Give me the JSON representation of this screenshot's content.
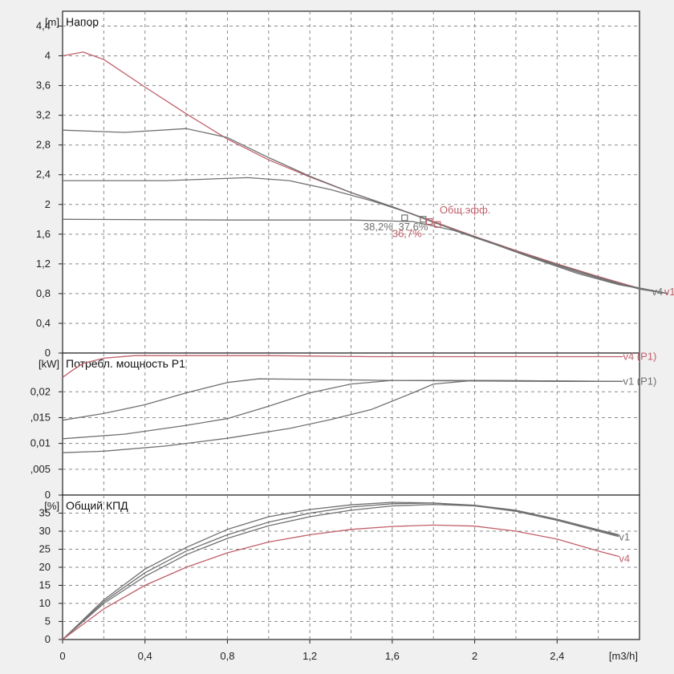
{
  "chart_data": [
    {
      "type": "line",
      "title": "Напор",
      "ylabel": "[m]",
      "xlim": [
        0,
        2.8
      ],
      "ylim": [
        0,
        4.6
      ],
      "y_ticks": [
        "0",
        "0,4",
        "0,8",
        "1,2",
        "1,6",
        "2",
        "2,4",
        "2,8",
        "3,2",
        "3,6",
        "4",
        "4,4"
      ],
      "grid": true,
      "series": [
        {
          "color": "#c0606a",
          "x": [
            0,
            0.1,
            0.2,
            0.4,
            0.6,
            0.8,
            1.0,
            1.2,
            1.4,
            1.6,
            1.8,
            2.0,
            2.2,
            2.4,
            2.6,
            2.8,
            2.94
          ],
          "y": [
            4.0,
            4.05,
            3.95,
            3.58,
            3.22,
            2.88,
            2.6,
            2.37,
            2.16,
            1.97,
            1.77,
            1.57,
            1.38,
            1.2,
            1.03,
            0.87,
            0.8
          ]
        },
        {
          "color": "#707070",
          "x": [
            0,
            0.3,
            0.6,
            0.8,
            1.0,
            1.2,
            1.4,
            1.6,
            1.8,
            2.0,
            2.2,
            2.4,
            2.6,
            2.8,
            2.94
          ],
          "y": [
            3.0,
            2.97,
            3.02,
            2.9,
            2.63,
            2.38,
            2.16,
            1.97,
            1.76,
            1.56,
            1.37,
            1.19,
            1.02,
            0.86,
            0.8
          ]
        },
        {
          "color": "#707070",
          "x": [
            0,
            0.5,
            0.9,
            1.1,
            1.3,
            1.5,
            1.7,
            1.9,
            2.1,
            2.3,
            2.5,
            2.7,
            2.94
          ],
          "y": [
            2.32,
            2.32,
            2.36,
            2.32,
            2.2,
            2.05,
            1.87,
            1.66,
            1.47,
            1.27,
            1.09,
            0.93,
            0.8
          ]
        },
        {
          "color": "#707070",
          "x": [
            0,
            0.8,
            1.4,
            1.7,
            1.9,
            2.1,
            2.3,
            2.5,
            2.7,
            2.94
          ],
          "y": [
            1.8,
            1.79,
            1.79,
            1.77,
            1.65,
            1.46,
            1.26,
            1.07,
            0.92,
            0.8
          ]
        }
      ],
      "markers": [
        {
          "x": 1.66,
          "y": 1.82,
          "color": "#707070"
        },
        {
          "x": 1.75,
          "y": 1.8,
          "color": "#707070"
        },
        {
          "x": 1.78,
          "y": 1.77,
          "color": "#c0606a"
        },
        {
          "x": 1.82,
          "y": 1.73,
          "color": "#c0606a"
        }
      ],
      "annotations": [
        {
          "text": "Общ.эфф.",
          "x": 1.83,
          "y": 1.88,
          "color": "#c0606a"
        },
        {
          "text": "38,2%",
          "x": 1.46,
          "y": 1.65,
          "color": "#707070"
        },
        {
          "text": "37,6%",
          "x": 1.63,
          "y": 1.65,
          "color": "#707070"
        },
        {
          "text": "36,7%",
          "x": 1.6,
          "y": 1.56,
          "color": "#c0606a"
        },
        {
          "text": "v4",
          "x": 2.86,
          "y": 0.78,
          "color": "#707070"
        },
        {
          "text": "v1",
          "x": 2.92,
          "y": 0.78,
          "color": "#c0606a"
        }
      ]
    },
    {
      "type": "line",
      "title": "Потребл. мощность P1",
      "ylabel": "[kW]",
      "xlim": [
        0,
        2.8
      ],
      "ylim": [
        0,
        0.0275
      ],
      "y_ticks": [
        "0",
        ",005",
        "0,01",
        ",015",
        "0,02"
      ],
      "grid": true,
      "series": [
        {
          "name": "v4 (P1)",
          "color": "#c0606a",
          "x": [
            0,
            0.05,
            0.1,
            0.2,
            0.35,
            0.5,
            1.0,
            1.5,
            2.0,
            2.5,
            2.72
          ],
          "y": [
            0.0228,
            0.0242,
            0.0255,
            0.0265,
            0.027,
            0.027,
            0.027,
            0.0268,
            0.0268,
            0.0268,
            0.0268
          ]
        },
        {
          "name": "v1 (P1)",
          "color": "#707070",
          "x": [
            0,
            0.2,
            0.4,
            0.6,
            0.8,
            0.95,
            1.2,
            1.6,
            2.0,
            2.4,
            2.72
          ],
          "y": [
            0.0145,
            0.0158,
            0.0175,
            0.0198,
            0.0218,
            0.0225,
            0.0224,
            0.0222,
            0.0221,
            0.022,
            0.022
          ]
        },
        {
          "color": "#707070",
          "x": [
            0,
            0.3,
            0.6,
            0.8,
            1.0,
            1.2,
            1.4,
            1.6,
            2.0,
            2.4,
            2.72
          ],
          "y": [
            0.0109,
            0.0118,
            0.0135,
            0.0148,
            0.0172,
            0.0198,
            0.0215,
            0.0222,
            0.0222,
            0.0221,
            0.022
          ]
        },
        {
          "color": "#707070",
          "x": [
            0,
            0.2,
            0.5,
            0.8,
            1.1,
            1.3,
            1.5,
            1.7,
            1.8,
            2.0,
            2.4,
            2.72
          ],
          "y": [
            0.0082,
            0.0085,
            0.0095,
            0.011,
            0.0129,
            0.0146,
            0.0166,
            0.0198,
            0.0215,
            0.0222,
            0.0221,
            0.022
          ]
        }
      ],
      "annotations": [
        {
          "text": "v4 (P1)",
          "x": 2.72,
          "y": 0.0262,
          "color": "#c0606a"
        },
        {
          "text": "v1 (P1)",
          "x": 2.72,
          "y": 0.0214,
          "color": "#707070"
        }
      ]
    },
    {
      "type": "line",
      "title": "Общий КПД",
      "ylabel": "[%]",
      "xlabel": "[m3/h]",
      "xlim": [
        0,
        2.8
      ],
      "ylim": [
        0,
        40
      ],
      "y_ticks": [
        "0",
        "5",
        "10",
        "15",
        "20",
        "25",
        "30",
        "35"
      ],
      "x_ticks": [
        "0",
        "0,4",
        "0,8",
        "1,2",
        "1,6",
        "2",
        "2,4"
      ],
      "grid": true,
      "series": [
        {
          "name": "v1",
          "color": "#707070",
          "x": [
            0,
            0.2,
            0.4,
            0.6,
            0.8,
            1.0,
            1.2,
            1.4,
            1.6,
            1.8,
            2.0,
            2.2,
            2.4,
            2.6,
            2.7
          ],
          "y": [
            0,
            11,
            19.5,
            25.5,
            30.5,
            34,
            36,
            37.3,
            38,
            37.8,
            37,
            35.5,
            33,
            30,
            28.5
          ]
        },
        {
          "color": "#707070",
          "x": [
            0,
            0.2,
            0.4,
            0.6,
            0.8,
            1.0,
            1.2,
            1.4,
            1.6,
            1.8,
            2.0,
            2.2,
            2.4,
            2.6,
            2.7
          ],
          "y": [
            0,
            10.5,
            18.5,
            24.5,
            29,
            32.5,
            35,
            36.7,
            37.6,
            37.8,
            37.2,
            35.8,
            33.3,
            30.4,
            29
          ]
        },
        {
          "color": "#707070",
          "x": [
            0,
            0.2,
            0.4,
            0.6,
            0.8,
            1.0,
            1.2,
            1.4,
            1.6,
            1.8,
            2.0,
            2.2,
            2.4,
            2.6,
            2.7
          ],
          "y": [
            0,
            10,
            17.5,
            23.5,
            28,
            31.5,
            34,
            35.8,
            37,
            37.4,
            37,
            35.6,
            33.2,
            30.2,
            28.8
          ]
        },
        {
          "name": "v4",
          "color": "#c0606a",
          "x": [
            0,
            0.2,
            0.4,
            0.6,
            0.8,
            1.0,
            1.2,
            1.4,
            1.6,
            1.8,
            2.0,
            2.2,
            2.4,
            2.6,
            2.7
          ],
          "y": [
            0,
            8.5,
            15,
            20,
            24,
            27,
            29,
            30.5,
            31.3,
            31.7,
            31.4,
            30,
            27.8,
            24.5,
            23
          ]
        }
      ],
      "annotations": [
        {
          "text": "v1",
          "x": 2.7,
          "y": 27.5,
          "color": "#707070"
        },
        {
          "text": "v4",
          "x": 2.7,
          "y": 21.5,
          "color": "#c0606a"
        }
      ]
    }
  ]
}
